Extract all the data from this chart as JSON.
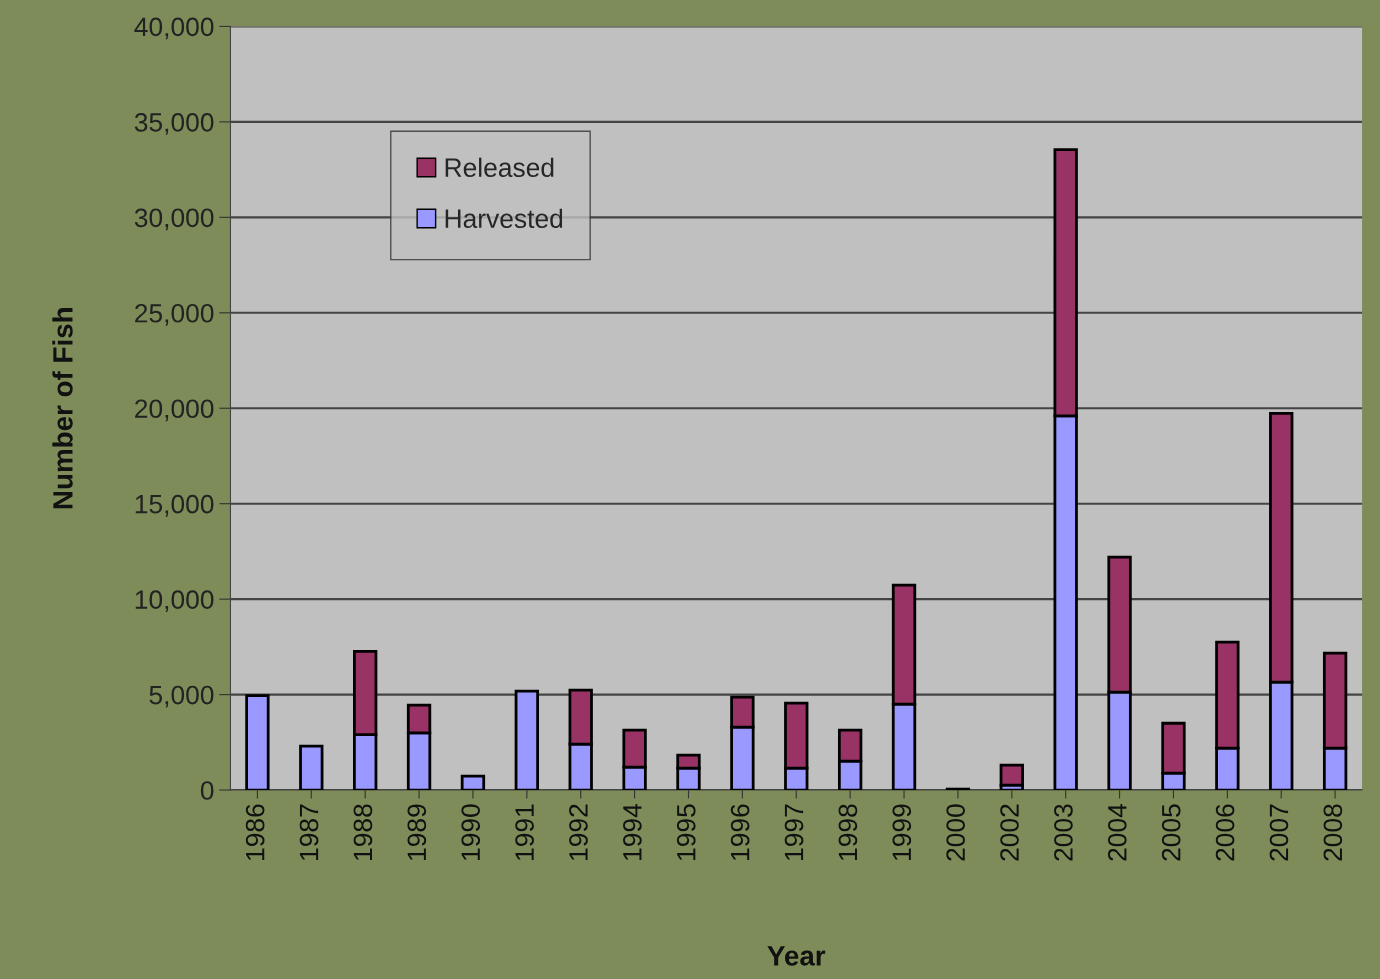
{
  "chart_data": {
    "type": "bar",
    "stacked": true,
    "xlabel": "Year",
    "ylabel": "Number of Fish",
    "categories": [
      "1986",
      "1987",
      "1988",
      "1989",
      "1990",
      "1991",
      "1992",
      "1994",
      "1995",
      "1996",
      "1997",
      "1998",
      "1999",
      "2000",
      "2002",
      "2003",
      "2004",
      "2005",
      "2006",
      "2007",
      "2008"
    ],
    "series": [
      {
        "name": "Harvested",
        "color": "#9999ff",
        "values": [
          4950,
          2300,
          2900,
          3000,
          730,
          5180,
          2400,
          1200,
          1150,
          3300,
          1150,
          1520,
          4500,
          50,
          260,
          19600,
          5130,
          890,
          2200,
          5650,
          2200
        ]
      },
      {
        "name": "Released",
        "color": "#993366",
        "values": [
          null,
          null,
          4370,
          1450,
          null,
          null,
          2830,
          1940,
          680,
          1570,
          3400,
          1620,
          6230,
          null,
          1040,
          13950,
          7070,
          2610,
          5550,
          14080,
          4970
        ]
      }
    ],
    "ylim": [
      0,
      40000
    ],
    "yticks": [
      {
        "value": 0,
        "label": "0"
      },
      {
        "value": 5000,
        "label": "5,000"
      },
      {
        "value": 10000,
        "label": "10,000"
      },
      {
        "value": 15000,
        "label": "15,000"
      },
      {
        "value": 20000,
        "label": "20,000"
      },
      {
        "value": 25000,
        "label": "25,000"
      },
      {
        "value": 30000,
        "label": "30,000"
      },
      {
        "value": 35000,
        "label": "35,000"
      },
      {
        "value": 40000,
        "label": "40,000"
      }
    ],
    "grid": "y",
    "legend": "top left"
  }
}
